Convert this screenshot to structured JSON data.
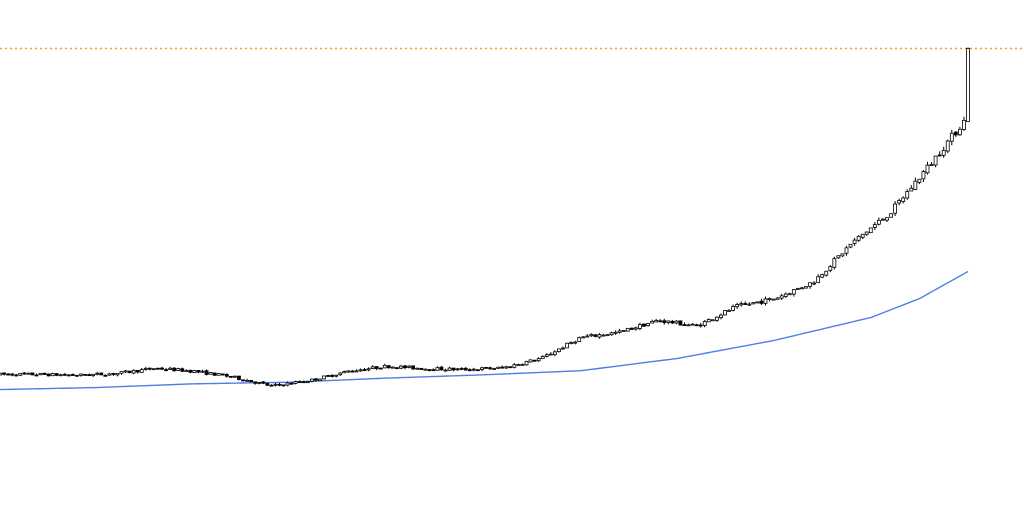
{
  "colors": {
    "background": "#ffffff",
    "candle_outline": "#000000",
    "bull_fill": "#ffffff",
    "bear_fill": "#000000",
    "moving_average": "#4f7fe6",
    "price_line": "#e8a317"
  },
  "chart_data": {
    "type": "candlestick",
    "title": "",
    "xlabel": "",
    "ylabel": "",
    "grid": false,
    "legend": "none",
    "x_range": [
      0,
      100
    ],
    "y_range": [
      0,
      100
    ],
    "current_price_line": 95.5,
    "close_anchors": [
      [
        0,
        16.0
      ],
      [
        4,
        16.0
      ],
      [
        8,
        15.8
      ],
      [
        12,
        16.2
      ],
      [
        16,
        17.5
      ],
      [
        20,
        16.8
      ],
      [
        24,
        15.4
      ],
      [
        28,
        13.2
      ],
      [
        32,
        14.5
      ],
      [
        36,
        16.8
      ],
      [
        40,
        18.0
      ],
      [
        44,
        17.4
      ],
      [
        48,
        17.2
      ],
      [
        52,
        17.6
      ],
      [
        56,
        20.0
      ],
      [
        60,
        25.0
      ],
      [
        64,
        26.3
      ],
      [
        68,
        29.2
      ],
      [
        72,
        27.8
      ],
      [
        76,
        32.5
      ],
      [
        80,
        34.5
      ],
      [
        84,
        38.5
      ],
      [
        88,
        48.0
      ],
      [
        92,
        55.5
      ],
      [
        96,
        67.0
      ],
      [
        100,
        79.0
      ]
    ],
    "moving_average": [
      [
        0,
        12.3
      ],
      [
        10,
        12.8
      ],
      [
        20,
        13.7
      ],
      [
        30,
        14.1
      ],
      [
        40,
        15.1
      ],
      [
        50,
        15.9
      ],
      [
        60,
        16.9
      ],
      [
        70,
        19.9
      ],
      [
        80,
        24.3
      ],
      [
        90,
        29.9
      ],
      [
        95,
        34.5
      ],
      [
        100,
        41.1
      ]
    ]
  }
}
